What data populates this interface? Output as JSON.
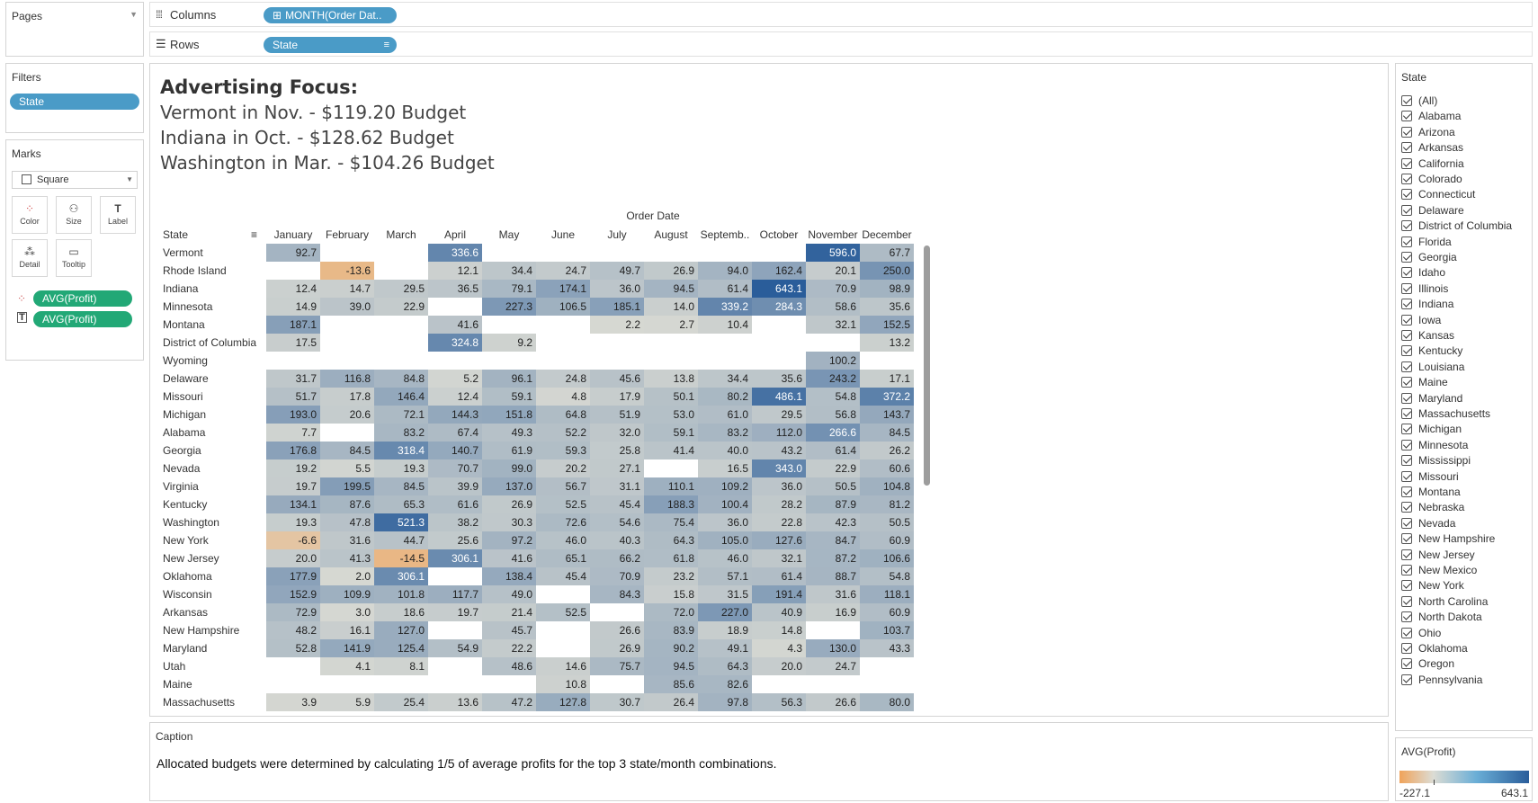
{
  "pages": {
    "title": "Pages"
  },
  "shelves": {
    "columns_label": "Columns",
    "columns_pill": "MONTH(Order Dat..",
    "rows_label": "Rows",
    "rows_pill": "State"
  },
  "filters": {
    "title": "Filters",
    "pill": "State"
  },
  "marks": {
    "title": "Marks",
    "type": "Square",
    "buttons": [
      "Color",
      "Size",
      "Label",
      "Detail",
      "Tooltip"
    ],
    "pills": [
      "AVG(Profit)",
      "AVG(Profit)"
    ]
  },
  "viz": {
    "title_line1": "Advertising Focus:",
    "title_line2": "Vermont in Nov. - $119.20 Budget",
    "title_line3": "Indiana in Oct. - $128.62 Budget",
    "title_line4": "Washington in Mar. - $104.26 Budget",
    "col_group_header": "Order Date",
    "row_header": "State",
    "months": [
      "January",
      "February",
      "March",
      "April",
      "May",
      "June",
      "July",
      "August",
      "Septemb..",
      "October",
      "November",
      "December"
    ],
    "rows": [
      {
        "state": "Vermont",
        "values": [
          92.7,
          null,
          null,
          336.6,
          null,
          null,
          null,
          null,
          null,
          null,
          596.0,
          67.7
        ]
      },
      {
        "state": "Rhode Island",
        "values": [
          null,
          -13.6,
          null,
          12.1,
          34.4,
          24.7,
          49.7,
          26.9,
          94.0,
          162.4,
          20.1,
          250.0
        ]
      },
      {
        "state": "Indiana",
        "values": [
          12.4,
          14.7,
          29.5,
          36.5,
          79.1,
          174.1,
          36.0,
          94.5,
          61.4,
          643.1,
          70.9,
          98.9
        ]
      },
      {
        "state": "Minnesota",
        "values": [
          14.9,
          39.0,
          22.9,
          null,
          227.3,
          106.5,
          185.1,
          14.0,
          339.2,
          284.3,
          58.6,
          35.6
        ]
      },
      {
        "state": "Montana",
        "values": [
          187.1,
          null,
          null,
          41.6,
          null,
          null,
          2.2,
          2.7,
          10.4,
          null,
          32.1,
          152.5
        ]
      },
      {
        "state": "District of Columbia",
        "values": [
          17.5,
          null,
          null,
          324.8,
          9.2,
          null,
          null,
          null,
          null,
          null,
          null,
          13.2
        ]
      },
      {
        "state": "Wyoming",
        "values": [
          null,
          null,
          null,
          null,
          null,
          null,
          null,
          null,
          null,
          null,
          100.2,
          null
        ]
      },
      {
        "state": "Delaware",
        "values": [
          31.7,
          116.8,
          84.8,
          5.2,
          96.1,
          24.8,
          45.6,
          13.8,
          34.4,
          35.6,
          243.2,
          17.1
        ]
      },
      {
        "state": "Missouri",
        "values": [
          51.7,
          17.8,
          146.4,
          12.4,
          59.1,
          4.8,
          17.9,
          50.1,
          80.2,
          486.1,
          54.8,
          372.2
        ]
      },
      {
        "state": "Michigan",
        "values": [
          193.0,
          20.6,
          72.1,
          144.3,
          151.8,
          64.8,
          51.9,
          53.0,
          61.0,
          29.5,
          56.8,
          143.7
        ]
      },
      {
        "state": "Alabama",
        "values": [
          7.7,
          null,
          83.2,
          67.4,
          49.3,
          52.2,
          32.0,
          59.1,
          83.2,
          112.0,
          266.6,
          84.5
        ]
      },
      {
        "state": "Georgia",
        "values": [
          176.8,
          84.5,
          318.4,
          140.7,
          61.9,
          59.3,
          25.8,
          41.4,
          40.0,
          43.2,
          61.4,
          26.2
        ]
      },
      {
        "state": "Nevada",
        "values": [
          19.2,
          5.5,
          19.3,
          70.7,
          99.0,
          20.2,
          27.1,
          null,
          16.5,
          343.0,
          22.9,
          60.6
        ]
      },
      {
        "state": "Virginia",
        "values": [
          19.7,
          199.5,
          84.5,
          39.9,
          137.0,
          56.7,
          31.1,
          110.1,
          109.2,
          36.0,
          50.5,
          104.8
        ]
      },
      {
        "state": "Kentucky",
        "values": [
          134.1,
          87.6,
          65.3,
          61.6,
          26.9,
          52.5,
          45.4,
          188.3,
          100.4,
          28.2,
          87.9,
          81.2
        ]
      },
      {
        "state": "Washington",
        "values": [
          19.3,
          47.8,
          521.3,
          38.2,
          30.3,
          72.6,
          54.6,
          75.4,
          36.0,
          22.8,
          42.3,
          50.5
        ]
      },
      {
        "state": "New York",
        "values": [
          -6.6,
          31.6,
          44.7,
          25.6,
          97.2,
          46.0,
          40.3,
          64.3,
          105.0,
          127.6,
          84.7,
          60.9
        ]
      },
      {
        "state": "New Jersey",
        "values": [
          20.0,
          41.3,
          -14.5,
          306.1,
          41.6,
          65.1,
          66.2,
          61.8,
          46.0,
          32.1,
          87.2,
          106.6
        ]
      },
      {
        "state": "Oklahoma",
        "values": [
          177.9,
          2.0,
          306.1,
          null,
          138.4,
          45.4,
          70.9,
          23.2,
          57.1,
          61.4,
          88.7,
          54.8
        ]
      },
      {
        "state": "Wisconsin",
        "values": [
          152.9,
          109.9,
          101.8,
          117.7,
          49.0,
          null,
          84.3,
          15.8,
          31.5,
          191.4,
          31.6,
          118.1
        ]
      },
      {
        "state": "Arkansas",
        "values": [
          72.9,
          3.0,
          18.6,
          19.7,
          21.4,
          52.5,
          null,
          72.0,
          227.0,
          40.9,
          16.9,
          60.9
        ]
      },
      {
        "state": "New Hampshire",
        "values": [
          48.2,
          16.1,
          127.0,
          null,
          45.7,
          null,
          26.6,
          83.9,
          18.9,
          14.8,
          null,
          103.7
        ]
      },
      {
        "state": "Maryland",
        "values": [
          52.8,
          141.9,
          125.4,
          54.9,
          22.2,
          null,
          26.9,
          90.2,
          49.1,
          4.3,
          130.0,
          43.3
        ]
      },
      {
        "state": "Utah",
        "values": [
          null,
          4.1,
          8.1,
          null,
          48.6,
          14.6,
          75.7,
          94.5,
          64.3,
          20.0,
          24.7,
          null
        ]
      },
      {
        "state": "Maine",
        "values": [
          null,
          null,
          null,
          null,
          null,
          10.8,
          null,
          85.6,
          82.6,
          null,
          null,
          null
        ]
      },
      {
        "state": "Massachusetts",
        "values": [
          3.9,
          5.9,
          25.4,
          13.6,
          47.2,
          127.8,
          30.7,
          26.4,
          97.8,
          56.3,
          26.6,
          80.0
        ]
      }
    ]
  },
  "caption": {
    "title": "Caption",
    "text": "Allocated budgets were determined by calculating 1/5 of average profits for the top 3 state/month combinations."
  },
  "state_filter": {
    "title": "State",
    "items": [
      "(All)",
      "Alabama",
      "Arizona",
      "Arkansas",
      "California",
      "Colorado",
      "Connecticut",
      "Delaware",
      "District of Columbia",
      "Florida",
      "Georgia",
      "Idaho",
      "Illinois",
      "Indiana",
      "Iowa",
      "Kansas",
      "Kentucky",
      "Louisiana",
      "Maine",
      "Maryland",
      "Massachusetts",
      "Michigan",
      "Minnesota",
      "Mississippi",
      "Missouri",
      "Montana",
      "Nebraska",
      "Nevada",
      "New Hampshire",
      "New Jersey",
      "New Mexico",
      "New York",
      "North Carolina",
      "North Dakota",
      "Ohio",
      "Oklahoma",
      "Oregon",
      "Pennsylvania"
    ]
  },
  "legend": {
    "title": "AVG(Profit)",
    "min_label": "-227.1",
    "max_label": "643.1",
    "min": -227.1,
    "max": 643.1,
    "colors": {
      "negative": "#f0a35a",
      "neutral": "#dcdcd4",
      "positive": "#2a5d9a"
    }
  }
}
